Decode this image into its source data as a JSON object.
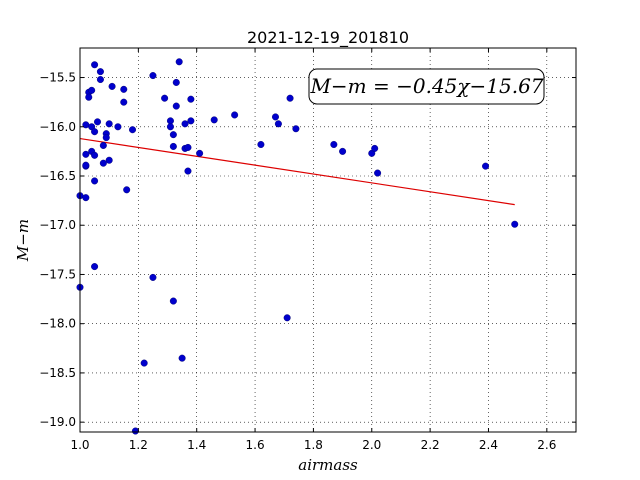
{
  "chart_data": {
    "type": "scatter",
    "title": "2021-12-19_201810",
    "xlabel": "airmass",
    "ylabel": "M−m",
    "xlim": [
      1.0,
      2.7
    ],
    "ylim": [
      -15.2,
      -19.1
    ],
    "y_inverted": true,
    "grid": true,
    "x_ticks": [
      "1.0",
      "1.2",
      "1.4",
      "1.6",
      "1.8",
      "2.0",
      "2.2",
      "2.4",
      "2.6"
    ],
    "x_tick_values": [
      1.0,
      1.2,
      1.4,
      1.6,
      1.8,
      2.0,
      2.2,
      2.4,
      2.6
    ],
    "y_ticks": [
      "−15.5",
      "−16.0",
      "−16.5",
      "−17.0",
      "−17.5",
      "−18.0",
      "−18.5",
      "−19.0"
    ],
    "y_tick_values": [
      -15.5,
      -16.0,
      -16.5,
      -17.0,
      -17.5,
      -18.0,
      -18.5,
      -19.0
    ],
    "annotation": "M−m = −0.45χ−15.67",
    "annotation_position": "top-right",
    "point_color": "#0000cc",
    "fit_color": "#dd0000",
    "fit_line": {
      "slope": -0.45,
      "intercept": -15.67,
      "x_range": [
        1.0,
        2.49
      ]
    },
    "points": [
      {
        "x": 1.0,
        "y": -16.7
      },
      {
        "x": 1.0,
        "y": -17.63
      },
      {
        "x": 1.02,
        "y": -16.72
      },
      {
        "x": 1.02,
        "y": -16.4
      },
      {
        "x": 1.02,
        "y": -16.39
      },
      {
        "x": 1.02,
        "y": -16.28
      },
      {
        "x": 1.02,
        "y": -15.98
      },
      {
        "x": 1.03,
        "y": -15.65
      },
      {
        "x": 1.03,
        "y": -15.7
      },
      {
        "x": 1.04,
        "y": -15.63
      },
      {
        "x": 1.04,
        "y": -16.0
      },
      {
        "x": 1.04,
        "y": -16.25
      },
      {
        "x": 1.05,
        "y": -16.29
      },
      {
        "x": 1.05,
        "y": -16.05
      },
      {
        "x": 1.05,
        "y": -16.55
      },
      {
        "x": 1.05,
        "y": -17.42
      },
      {
        "x": 1.05,
        "y": -15.37
      },
      {
        "x": 1.06,
        "y": -15.95
      },
      {
        "x": 1.07,
        "y": -15.52
      },
      {
        "x": 1.07,
        "y": -15.44
      },
      {
        "x": 1.08,
        "y": -16.19
      },
      {
        "x": 1.08,
        "y": -16.37
      },
      {
        "x": 1.09,
        "y": -16.07
      },
      {
        "x": 1.09,
        "y": -16.11
      },
      {
        "x": 1.1,
        "y": -16.34
      },
      {
        "x": 1.1,
        "y": -15.97
      },
      {
        "x": 1.11,
        "y": -15.59
      },
      {
        "x": 1.13,
        "y": -16.0
      },
      {
        "x": 1.15,
        "y": -15.62
      },
      {
        "x": 1.15,
        "y": -15.75
      },
      {
        "x": 1.16,
        "y": -16.64
      },
      {
        "x": 1.18,
        "y": -16.03
      },
      {
        "x": 1.19,
        "y": -19.09
      },
      {
        "x": 1.22,
        "y": -18.4
      },
      {
        "x": 1.25,
        "y": -15.48
      },
      {
        "x": 1.25,
        "y": -17.53
      },
      {
        "x": 1.29,
        "y": -15.71
      },
      {
        "x": 1.31,
        "y": -15.94
      },
      {
        "x": 1.31,
        "y": -16.0
      },
      {
        "x": 1.32,
        "y": -16.2
      },
      {
        "x": 1.32,
        "y": -16.08
      },
      {
        "x": 1.32,
        "y": -17.77
      },
      {
        "x": 1.33,
        "y": -15.55
      },
      {
        "x": 1.33,
        "y": -15.79
      },
      {
        "x": 1.34,
        "y": -15.34
      },
      {
        "x": 1.35,
        "y": -18.35
      },
      {
        "x": 1.36,
        "y": -16.22
      },
      {
        "x": 1.36,
        "y": -15.97
      },
      {
        "x": 1.37,
        "y": -16.21
      },
      {
        "x": 1.37,
        "y": -16.45
      },
      {
        "x": 1.38,
        "y": -15.72
      },
      {
        "x": 1.38,
        "y": -15.94
      },
      {
        "x": 1.41,
        "y": -16.27
      },
      {
        "x": 1.46,
        "y": -15.93
      },
      {
        "x": 1.53,
        "y": -15.88
      },
      {
        "x": 1.62,
        "y": -16.18
      },
      {
        "x": 1.67,
        "y": -15.9
      },
      {
        "x": 1.68,
        "y": -15.97
      },
      {
        "x": 1.71,
        "y": -17.94
      },
      {
        "x": 1.72,
        "y": -15.71
      },
      {
        "x": 1.74,
        "y": -16.02
      },
      {
        "x": 1.87,
        "y": -16.18
      },
      {
        "x": 1.9,
        "y": -16.25
      },
      {
        "x": 2.0,
        "y": -16.27
      },
      {
        "x": 2.01,
        "y": -16.22
      },
      {
        "x": 2.02,
        "y": -16.47
      },
      {
        "x": 2.39,
        "y": -16.4
      },
      {
        "x": 2.49,
        "y": -16.99
      }
    ]
  }
}
